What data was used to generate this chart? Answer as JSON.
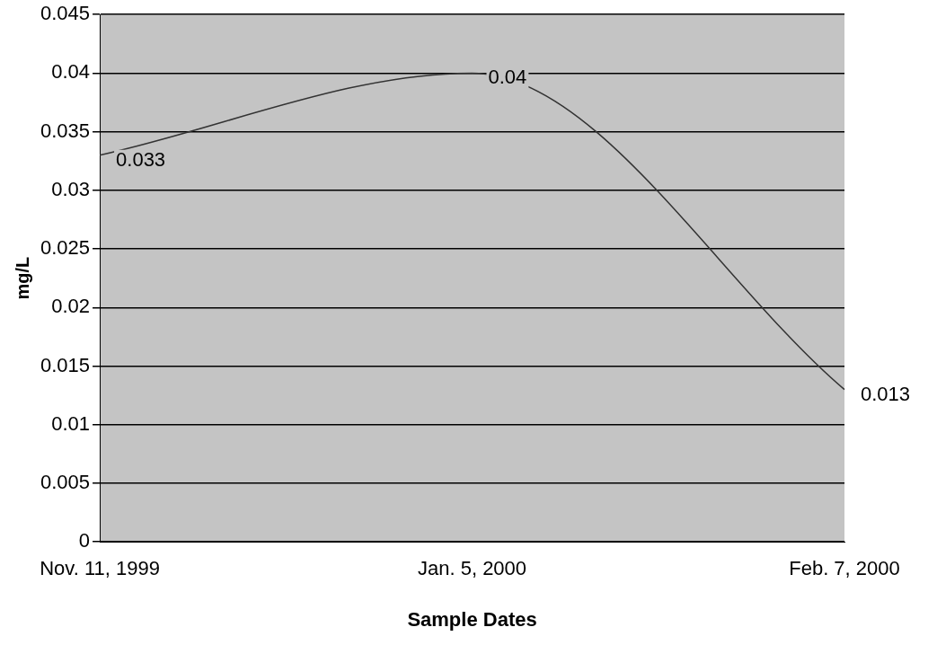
{
  "chart_data": {
    "type": "line",
    "xlabel": "Sample Dates",
    "ylabel": "mg/L",
    "categories": [
      "Nov. 11, 1999",
      "Jan. 5, 2000",
      "Feb. 7, 2000"
    ],
    "series": [
      {
        "color": "#333333",
        "values": [
          0.033,
          0.04,
          0.013
        ]
      }
    ],
    "ylim": [
      0,
      0.045
    ],
    "yticks": [
      0,
      0.005,
      0.01,
      0.015,
      0.02,
      0.025,
      0.03,
      0.035,
      0.04,
      0.045
    ],
    "grid": "y",
    "data_labels": true,
    "marker": "none",
    "line_style": "solid",
    "legend": false
  }
}
